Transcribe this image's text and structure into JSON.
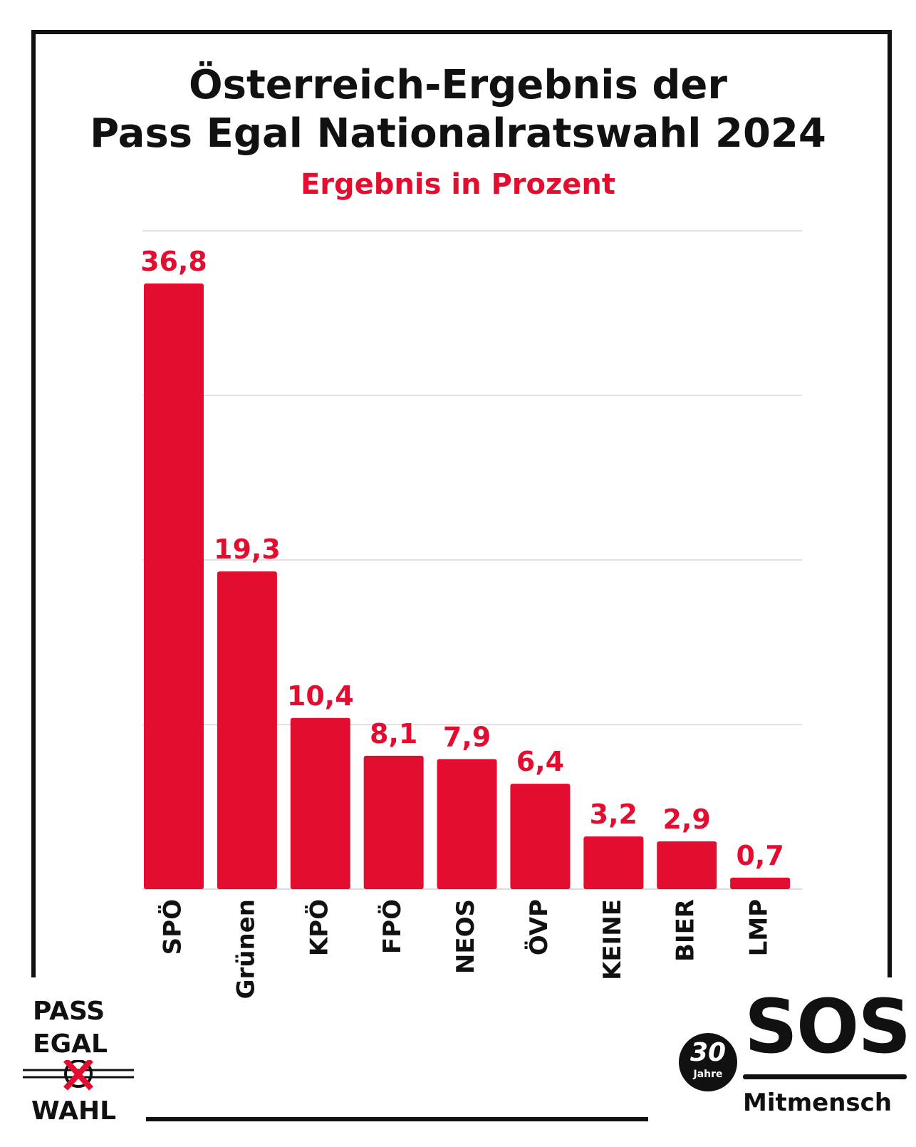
{
  "header": {
    "title_line1": "Österreich-Ergebnis der",
    "title_line2": "Pass Egal Nationalratswahl 2024",
    "subtitle": "Ergebnis in Prozent"
  },
  "chart_data": {
    "type": "bar",
    "title": "Österreich-Ergebnis der Pass Egal Nationalratswahl 2024",
    "subtitle": "Ergebnis in Prozent",
    "categories": [
      "SPÖ",
      "Grünen",
      "KPÖ",
      "FPÖ",
      "NEOS",
      "ÖVP",
      "KEINE",
      "BIER",
      "LMP"
    ],
    "values": [
      36.8,
      19.3,
      10.4,
      8.1,
      7.9,
      6.4,
      3.2,
      2.9,
      0.7
    ],
    "value_labels": [
      "36,8",
      "19,3",
      "10,4",
      "8,1",
      "7,9",
      "6,4",
      "3,2",
      "2,9",
      "0,7"
    ],
    "xlabel": "",
    "ylabel": "",
    "ylim": [
      0,
      40
    ],
    "gridlines": [
      10,
      20,
      30,
      40
    ],
    "grid": true,
    "legend": "none",
    "bar_color": "#e30e2f",
    "label_color": "#e30e2f"
  },
  "logos": {
    "pass_egal": {
      "line1": "PASS",
      "line2": "EGAL",
      "line3": "WAHL"
    },
    "sos": {
      "name": "SOS",
      "sub": "Mitmensch",
      "badge_number": "30",
      "badge_label": "Jahre"
    }
  }
}
